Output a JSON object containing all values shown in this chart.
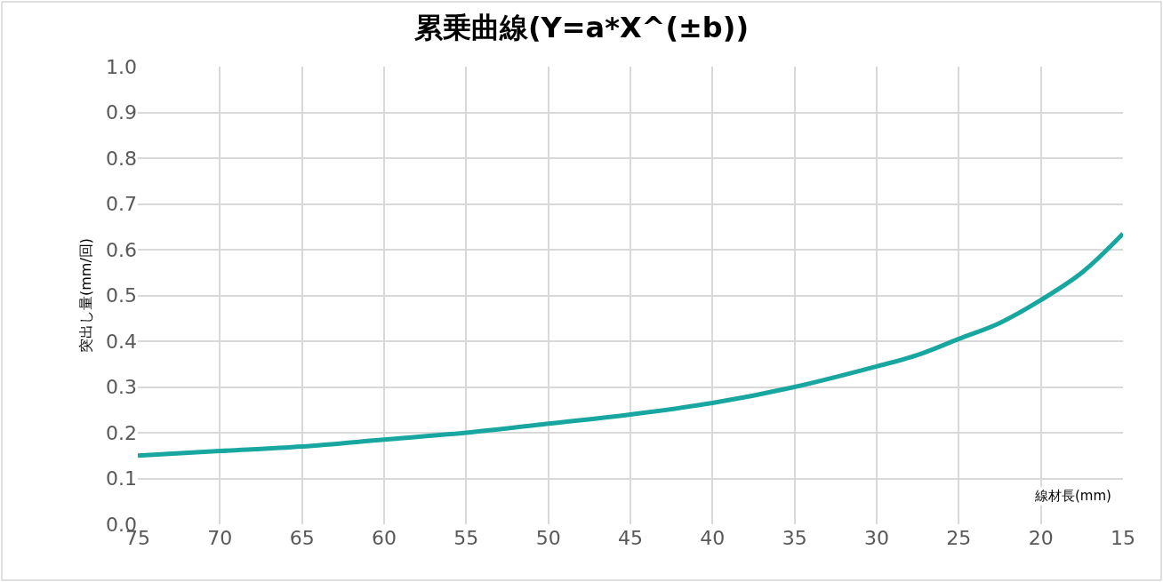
{
  "chart_data": {
    "type": "line",
    "title": "累乗曲線(Y=a*X^(±b))",
    "xlabel": "線材長(mm)",
    "ylabel": "突出し量(mm/回)",
    "series": [
      {
        "color": "#17a6a0",
        "x": [
          75,
          70,
          65,
          60,
          55,
          50,
          45,
          40,
          35,
          30,
          27.5,
          25,
          22.5,
          20,
          17.5,
          15
        ],
        "values": [
          0.15,
          0.16,
          0.17,
          0.185,
          0.2,
          0.22,
          0.24,
          0.265,
          0.3,
          0.345,
          0.37,
          0.405,
          0.44,
          0.49,
          0.55,
          0.635
        ]
      }
    ],
    "xlim": [
      75,
      15
    ],
    "xticks": [
      75,
      70,
      65,
      60,
      55,
      50,
      45,
      40,
      35,
      30,
      25,
      20,
      15
    ],
    "ylim": [
      0,
      1.0
    ],
    "yticks": [
      {
        "value": 0,
        "label": "0.0"
      },
      0.1,
      0.2,
      0.3,
      0.4,
      0.5,
      0.6,
      0.7,
      0.8,
      0.9,
      {
        "value": 1.0,
        "label": "1.0"
      }
    ],
    "grid": true,
    "marker": "none",
    "line_style": "solid"
  }
}
